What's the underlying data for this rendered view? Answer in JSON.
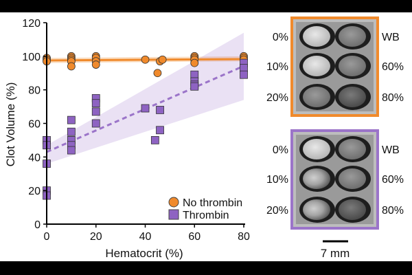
{
  "chart_data": {
    "type": "scatter",
    "xlabel": "Hematocrit (%)",
    "ylabel": "Clot Volume (%)",
    "xlim": [
      0,
      80
    ],
    "ylim": [
      0,
      120
    ],
    "xticks": [
      0,
      20,
      40,
      60,
      80
    ],
    "yticks": [
      0,
      20,
      40,
      60,
      80,
      100,
      120
    ],
    "legend_position": "bottom-right",
    "series": [
      {
        "name": "No thrombin",
        "marker": "circle",
        "color": "#f08a2c",
        "points": [
          [
            0,
            99
          ],
          [
            0,
            98
          ],
          [
            0,
            97
          ],
          [
            10,
            100
          ],
          [
            10,
            99
          ],
          [
            10,
            98
          ],
          [
            10,
            97
          ],
          [
            10,
            94
          ],
          [
            20,
            100
          ],
          [
            20,
            99
          ],
          [
            20,
            97
          ],
          [
            20,
            95
          ],
          [
            40,
            98
          ],
          [
            45,
            90
          ],
          [
            46,
            97
          ],
          [
            47,
            98
          ],
          [
            60,
            100
          ],
          [
            60,
            99
          ],
          [
            60,
            98
          ],
          [
            60,
            96
          ],
          [
            80,
            100
          ],
          [
            80,
            99
          ],
          [
            80,
            98
          ]
        ],
        "fit": {
          "intercept": 97.5,
          "slope": 0.01,
          "band_low": [
            96,
            97
          ],
          "band_high": [
            99,
            100
          ]
        }
      },
      {
        "name": "Thrombin",
        "marker": "square",
        "color": "#8e63c2",
        "points": [
          [
            0,
            50
          ],
          [
            0,
            47
          ],
          [
            0,
            36
          ],
          [
            0,
            20
          ],
          [
            0,
            17
          ],
          [
            10,
            62
          ],
          [
            10,
            55
          ],
          [
            10,
            50
          ],
          [
            10,
            47
          ],
          [
            10,
            44
          ],
          [
            20,
            75
          ],
          [
            20,
            72
          ],
          [
            20,
            67
          ],
          [
            20,
            60
          ],
          [
            40,
            69
          ],
          [
            44,
            50
          ],
          [
            46,
            56
          ],
          [
            46,
            68
          ],
          [
            60,
            89
          ],
          [
            60,
            85
          ],
          [
            60,
            83
          ],
          [
            60,
            82
          ],
          [
            80,
            96
          ],
          [
            80,
            93
          ],
          [
            80,
            89
          ]
        ],
        "fit": {
          "intercept": 43,
          "slope": 0.64,
          "band_low": [
            36,
            74
          ],
          "band_high": [
            47,
            114
          ]
        }
      }
    ]
  },
  "panels": [
    {
      "frame_color": "#f08a2c",
      "labels_left": [
        "0%",
        "10%",
        "20%"
      ],
      "labels_right": [
        "WB",
        "60%",
        "80%"
      ]
    },
    {
      "frame_color": "#9b74c9",
      "labels_left": [
        "0%",
        "10%",
        "20%"
      ],
      "labels_right": [
        "WB",
        "60%",
        "80%"
      ]
    }
  ],
  "scale_bar": {
    "label": "7 mm"
  }
}
